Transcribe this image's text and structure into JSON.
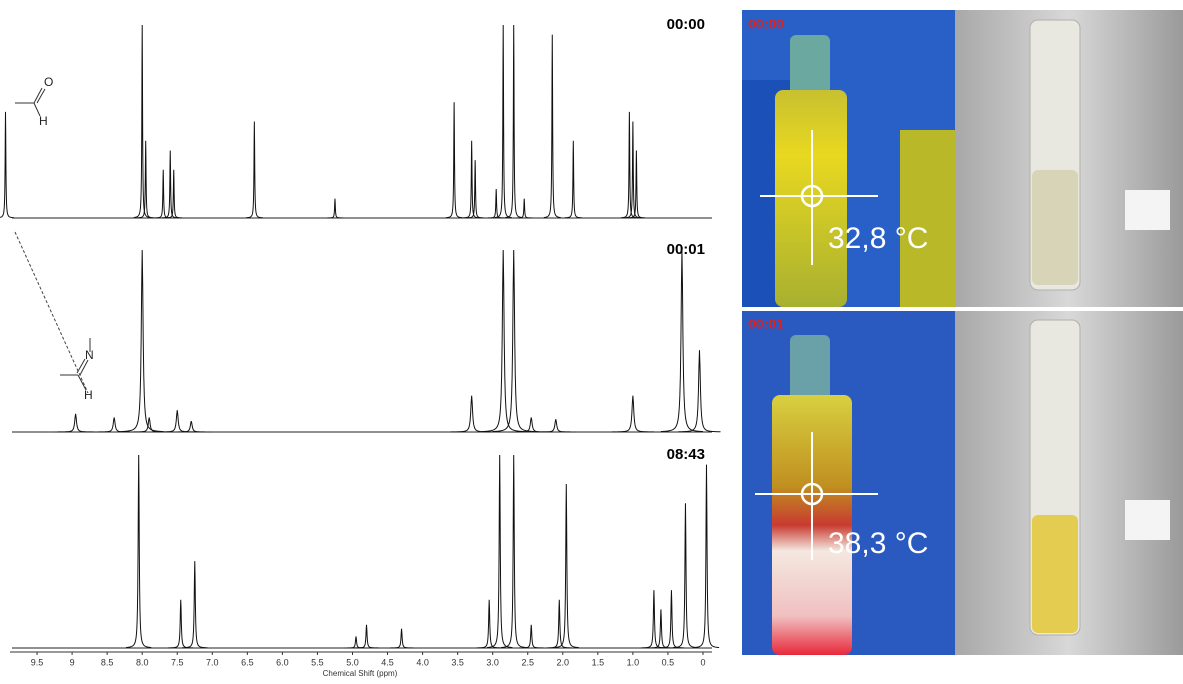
{
  "spectra": [
    {
      "time": "00:00",
      "peaks": {
        "x": [
          9.95,
          8.0,
          7.95,
          7.7,
          7.6,
          7.55,
          6.4,
          5.25,
          3.55,
          3.3,
          3.25,
          2.95,
          2.85,
          2.7,
          2.55,
          2.15,
          1.85,
          1.05,
          1.0,
          0.95
        ],
        "values": [
          55,
          100,
          40,
          25,
          35,
          25,
          50,
          10,
          60,
          40,
          30,
          15,
          100,
          100,
          10,
          95,
          40,
          55,
          50,
          35
        ]
      }
    },
    {
      "time": "00:01",
      "peaks": {
        "x": [
          8.95,
          8.4,
          8.0,
          7.9,
          7.5,
          7.3,
          3.3,
          2.85,
          2.7,
          2.45,
          2.1,
          1.0,
          0.3,
          0.05
        ],
        "values": [
          10,
          8,
          100,
          8,
          12,
          6,
          20,
          100,
          100,
          8,
          7,
          20,
          100,
          45
        ]
      }
    },
    {
      "time": "08:43",
      "peaks": {
        "x": [
          8.05,
          7.45,
          7.25,
          4.95,
          4.8,
          4.3,
          3.05,
          2.9,
          2.7,
          2.45,
          2.05,
          1.95,
          0.7,
          0.6,
          0.45,
          0.25,
          -0.05
        ],
        "values": [
          100,
          25,
          45,
          6,
          12,
          10,
          25,
          100,
          100,
          12,
          25,
          85,
          30,
          20,
          30,
          75,
          95
        ]
      }
    }
  ],
  "axis": {
    "label": "Chemical Shift (ppm)",
    "xlim": [
      10,
      -0.2
    ],
    "xticks": [
      9.5,
      9.0,
      {
        "value": 8.5,
        "label": "8.5"
      },
      {
        "value": 8,
        "label": "8.0"
      },
      7.5,
      {
        "value": 7,
        "label": "7.0"
      },
      6.5,
      {
        "value": 6,
        "label": "6.0"
      },
      5.5,
      {
        "value": 5,
        "label": "5.0"
      },
      4.5,
      {
        "value": 4,
        "label": "4.0"
      },
      3.5,
      {
        "value": 3,
        "label": "3.0"
      },
      2.5,
      {
        "value": 2,
        "label": "2.0"
      },
      1.5,
      {
        "value": 1,
        "label": "1.0"
      },
      0.5,
      0
    ]
  },
  "structures": {
    "aldehyde": [
      "O",
      "H"
    ],
    "imine": [
      "N",
      "H"
    ]
  },
  "images": [
    {
      "time": "00:00",
      "temperature": "32,8 °C"
    },
    {
      "time": "00:01",
      "temperature": "38,3 °C"
    }
  ]
}
